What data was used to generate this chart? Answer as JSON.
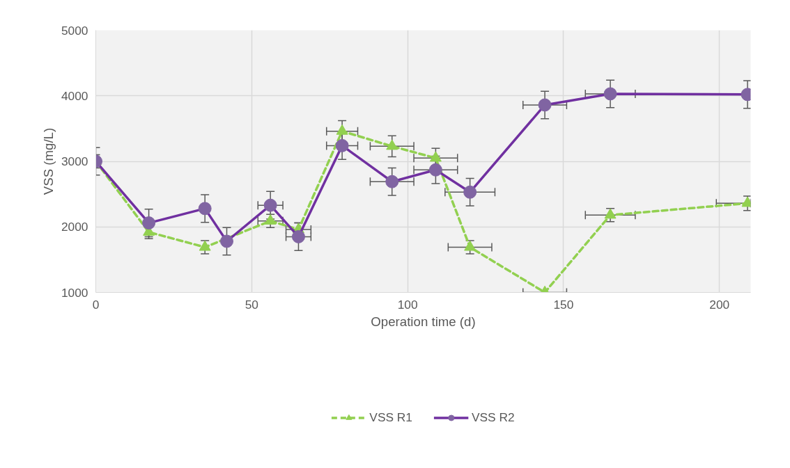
{
  "chart_data": {
    "type": "line",
    "xlabel": "Operation time (d)",
    "ylabel": "VSS (mg/L)",
    "xlim": [
      0,
      210
    ],
    "xticks": [
      0,
      50,
      100,
      150,
      200
    ],
    "ylim": [
      1000,
      5000
    ],
    "yticks": [
      1000,
      2000,
      3000,
      4000,
      5000
    ],
    "grid": true,
    "legend": "bottom",
    "series": [
      {
        "name": "VSS R1",
        "color": "#92d050",
        "marker": "triangle",
        "line_style": "dashed",
        "x": [
          0,
          17,
          35,
          42,
          56,
          65,
          79,
          95,
          109,
          120,
          144,
          165,
          209
        ],
        "values": [
          3000,
          1920,
          1690,
          null,
          2090,
          1960,
          3460,
          3230,
          3050,
          1690,
          1000,
          2180,
          2360
        ],
        "errors": [
          100,
          100,
          100,
          null,
          100,
          100,
          160,
          160,
          150,
          100,
          null,
          100,
          110
        ],
        "xerrors": [
          null,
          null,
          null,
          null,
          4,
          4,
          5,
          7,
          7,
          7,
          7,
          8,
          [
            199,
            210
          ]
        ]
      },
      {
        "name": "VSS R2",
        "color": "#7030a0",
        "marker": "circle",
        "line_style": "solid",
        "x": [
          0,
          17,
          35,
          42,
          56,
          65,
          79,
          95,
          109,
          120,
          144,
          165,
          209
        ],
        "values": [
          3000,
          2060,
          2280,
          1780,
          2330,
          1850,
          3240,
          2690,
          2870,
          2530,
          3860,
          4030,
          4020
        ],
        "errors": [
          210,
          210,
          210,
          210,
          210,
          210,
          210,
          210,
          210,
          210,
          210,
          210,
          210
        ],
        "xerrors": [
          null,
          null,
          null,
          null,
          4,
          4,
          5,
          7,
          7,
          8,
          7,
          8,
          null
        ]
      }
    ]
  }
}
